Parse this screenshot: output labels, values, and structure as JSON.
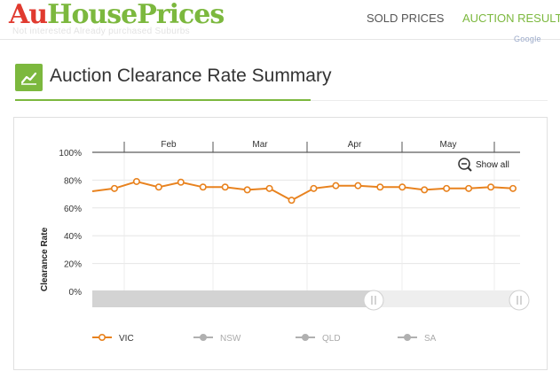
{
  "logo": {
    "au": "Au",
    "house_prices": "HousePrices"
  },
  "ghost_text": "Not interested    Already purchased    Suburbs",
  "nav": {
    "sold_prices": "SOLD PRICES",
    "auction_results": "AUCTION RESULT"
  },
  "google": "Google",
  "section": {
    "title": "Auction Clearance Rate Summary",
    "icon": "line-chart-icon"
  },
  "show_all": "Show all",
  "colors": {
    "accent": "#7cb83e",
    "vic": "#e8821e",
    "inactive": "#b0b0b0",
    "logo_red": "#e03a2f"
  },
  "chart_data": {
    "type": "line",
    "ylabel": "Clearance Rate",
    "yticks": [
      "0%",
      "20%",
      "40%",
      "60%",
      "80%",
      "100%"
    ],
    "ylim": [
      0,
      100
    ],
    "month_labels": [
      "Feb",
      "Mar",
      "Apr",
      "May"
    ],
    "grid": true,
    "legend_position": "bottom",
    "series": [
      {
        "name": "VIC",
        "active": true,
        "values": [
          72,
          74,
          79,
          75,
          78.5,
          75,
          75,
          73,
          74,
          65.5,
          74,
          76,
          76,
          75,
          75,
          73,
          74,
          74,
          75,
          74
        ]
      },
      {
        "name": "NSW",
        "active": false,
        "values": []
      },
      {
        "name": "QLD",
        "active": false,
        "values": []
      },
      {
        "name": "SA",
        "active": false,
        "values": []
      }
    ]
  }
}
